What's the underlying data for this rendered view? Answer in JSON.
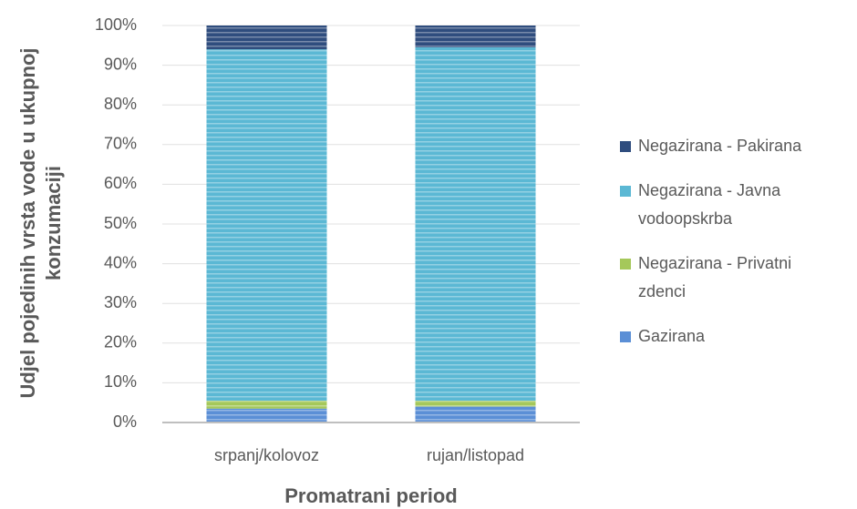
{
  "chart_data": {
    "type": "stacked_bar",
    "ylabel": "Udjel pojedinih vrsta vode u ukupnoj konzumaciji",
    "xlabel": "Promatrani period",
    "categories": [
      "srpanj/kolovoz",
      "rujan/listopad"
    ],
    "series": [
      {
        "name": "Gazirana",
        "color": "#5b8fd6",
        "values": [
          3.5,
          4
        ]
      },
      {
        "name": "Negazirana - Privatni zdenci",
        "color": "#a5c85a",
        "values": [
          2,
          1.5
        ]
      },
      {
        "name": "Negazirana - Javna vodoopskrba",
        "color": "#5bb8d4",
        "values": [
          88.5,
          89
        ]
      },
      {
        "name": "Negazirana - Pakirana",
        "color": "#2f4d7e",
        "values": [
          6,
          5.5
        ]
      }
    ],
    "ylim": [
      0,
      100
    ],
    "yticks": [
      {
        "value": 0,
        "label": "0%"
      },
      {
        "value": 10,
        "label": "10%"
      },
      {
        "value": 20,
        "label": "20%"
      },
      {
        "value": 30,
        "label": "30%"
      },
      {
        "value": 40,
        "label": "40%"
      },
      {
        "value": 50,
        "label": "50%"
      },
      {
        "value": 60,
        "label": "60%"
      },
      {
        "value": 70,
        "label": "70%"
      },
      {
        "value": 80,
        "label": "80%"
      },
      {
        "value": 90,
        "label": "90%"
      },
      {
        "value": 100,
        "label": "100%"
      }
    ],
    "grid": true,
    "legend": "right"
  }
}
